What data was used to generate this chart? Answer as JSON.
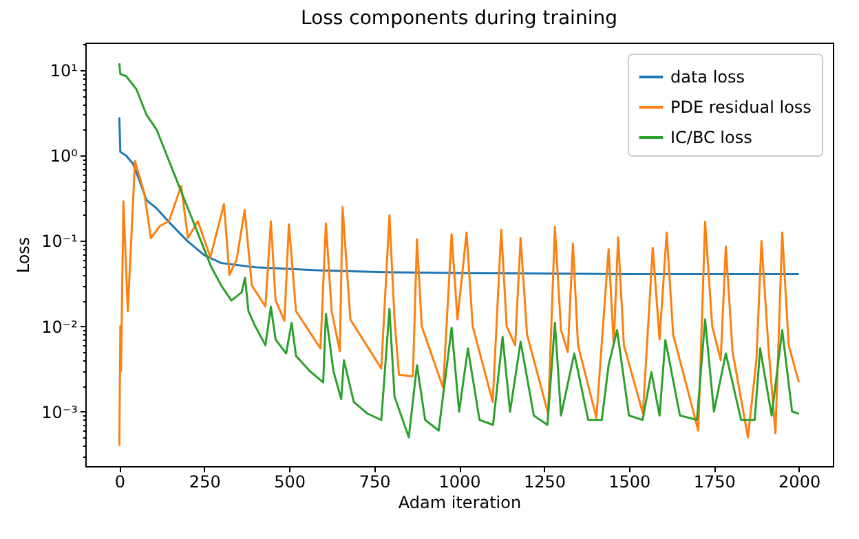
{
  "chart_data": {
    "type": "line",
    "title": "Loss components during training",
    "xlabel": "Adam iteration",
    "ylabel": "Loss",
    "log": "y",
    "grid": false,
    "legend": "top right",
    "marker": "none",
    "line_style": "solid",
    "xlim": [
      -100,
      2100
    ],
    "xticks": [
      0,
      250,
      500,
      750,
      1000,
      1250,
      1500,
      1750,
      2000
    ],
    "ylim": [
      0.00023,
      21
    ],
    "yticks": [
      {
        "value": 0.0003,
        "label": null
      },
      {
        "value": 0.0004,
        "label": null
      },
      {
        "value": 0.0005,
        "label": null
      },
      {
        "value": 0.0006,
        "label": null
      },
      {
        "value": 0.0007,
        "label": null
      },
      {
        "value": 0.0008,
        "label": null
      },
      {
        "value": 0.0009,
        "label": null
      },
      {
        "value": 0.001,
        "label": "10⁻³"
      },
      {
        "value": 0.002,
        "label": null
      },
      {
        "value": 0.003,
        "label": null
      },
      {
        "value": 0.004,
        "label": null
      },
      {
        "value": 0.005,
        "label": null
      },
      {
        "value": 0.006,
        "label": null
      },
      {
        "value": 0.007,
        "label": null
      },
      {
        "value": 0.008,
        "label": null
      },
      {
        "value": 0.009,
        "label": null
      },
      {
        "value": 0.01,
        "label": "10⁻²"
      },
      {
        "value": 0.02,
        "label": null
      },
      {
        "value": 0.03,
        "label": null
      },
      {
        "value": 0.04,
        "label": null
      },
      {
        "value": 0.05,
        "label": null
      },
      {
        "value": 0.06,
        "label": null
      },
      {
        "value": 0.07,
        "label": null
      },
      {
        "value": 0.08,
        "label": null
      },
      {
        "value": 0.09,
        "label": null
      },
      {
        "value": 0.1,
        "label": "10⁻¹"
      },
      {
        "value": 0.2,
        "label": null
      },
      {
        "value": 0.3,
        "label": null
      },
      {
        "value": 0.4,
        "label": null
      },
      {
        "value": 0.5,
        "label": null
      },
      {
        "value": 0.6,
        "label": null
      },
      {
        "value": 0.7,
        "label": null
      },
      {
        "value": 0.8,
        "label": null
      },
      {
        "value": 0.9,
        "label": null
      },
      {
        "value": 1,
        "label": "10⁰"
      },
      {
        "value": 2,
        "label": null
      },
      {
        "value": 3,
        "label": null
      },
      {
        "value": 4,
        "label": null
      },
      {
        "value": 5,
        "label": null
      },
      {
        "value": 6,
        "label": null
      },
      {
        "value": 7,
        "label": null
      },
      {
        "value": 8,
        "label": null
      },
      {
        "value": 9,
        "label": null
      },
      {
        "value": 10,
        "label": "10¹"
      },
      {
        "value": 20,
        "label": null
      }
    ],
    "series": [
      {
        "name": "data loss",
        "color": "#1f77b4",
        "x": [
          0,
          3,
          20,
          40,
          60,
          80,
          110,
          150,
          200,
          250,
          300,
          400,
          600,
          800,
          1000,
          1500,
          2000
        ],
        "values": [
          2.8,
          1.1,
          1.0,
          0.8,
          0.5,
          0.3,
          0.24,
          0.16,
          0.1,
          0.068,
          0.055,
          0.049,
          0.045,
          0.043,
          0.042,
          0.041,
          0.041
        ]
      },
      {
        "name": "PDE residual loss",
        "color": "#ff7f0e",
        "x": [
          0,
          3,
          5,
          12,
          25,
          46,
          73,
          93,
          120,
          146,
          182,
          202,
          231,
          268,
          308,
          324,
          345,
          369,
          390,
          430,
          446,
          460,
          486,
          499,
          520,
          592,
          608,
          625,
          649,
          657,
          680,
          771,
          795,
          810,
          823,
          864,
          876,
          890,
          953,
          978,
          995,
          1022,
          1040,
          1099,
          1124,
          1140,
          1165,
          1181,
          1200,
          1262,
          1282,
          1300,
          1320,
          1335,
          1350,
          1404,
          1440,
          1455,
          1468,
          1485,
          1541,
          1570,
          1590,
          1611,
          1630,
          1704,
          1724,
          1745,
          1770,
          1785,
          1805,
          1850,
          1875,
          1890,
          1910,
          1931,
          1951,
          1970,
          2000
        ],
        "values": [
          0.0004,
          0.01,
          0.003,
          0.29,
          0.015,
          0.86,
          0.37,
          0.108,
          0.15,
          0.17,
          0.44,
          0.108,
          0.17,
          0.064,
          0.27,
          0.04,
          0.06,
          0.23,
          0.03,
          0.017,
          0.17,
          0.02,
          0.0116,
          0.156,
          0.015,
          0.0055,
          0.16,
          0.015,
          0.0051,
          0.25,
          0.012,
          0.0032,
          0.2,
          0.012,
          0.0027,
          0.0026,
          0.104,
          0.01,
          0.0019,
          0.12,
          0.012,
          0.125,
          0.01,
          0.0013,
          0.135,
          0.01,
          0.006,
          0.108,
          0.008,
          0.00095,
          0.145,
          0.009,
          0.005,
          0.093,
          0.006,
          0.00085,
          0.08,
          0.006,
          0.11,
          0.006,
          0.00095,
          0.083,
          0.007,
          0.125,
          0.008,
          0.0006,
          0.168,
          0.01,
          0.004,
          0.086,
          0.005,
          0.0005,
          0.004,
          0.1,
          0.006,
          0.00056,
          0.125,
          0.006,
          0.0022
        ]
      },
      {
        "name": "IC/BC loss",
        "color": "#2ca02c",
        "x": [
          0,
          3,
          20,
          50,
          80,
          110,
          140,
          170,
          210,
          240,
          270,
          300,
          330,
          360,
          370,
          380,
          400,
          430,
          446,
          460,
          491,
          507,
          520,
          560,
          600,
          608,
          630,
          653,
          661,
          690,
          730,
          771,
          795,
          810,
          852,
          876,
          900,
          940,
          978,
          1000,
          1026,
          1060,
          1100,
          1128,
          1150,
          1181,
          1220,
          1260,
          1282,
          1300,
          1339,
          1380,
          1420,
          1440,
          1465,
          1500,
          1540,
          1566,
          1590,
          1607,
          1650,
          1700,
          1724,
          1750,
          1785,
          1830,
          1870,
          1886,
          1920,
          1951,
          1980,
          2000
        ],
        "values": [
          12,
          9,
          8.5,
          6,
          3,
          2,
          1,
          0.5,
          0.2,
          0.1,
          0.05,
          0.03,
          0.02,
          0.025,
          0.037,
          0.015,
          0.01,
          0.006,
          0.017,
          0.007,
          0.0048,
          0.011,
          0.0045,
          0.003,
          0.0022,
          0.014,
          0.003,
          0.0014,
          0.004,
          0.0013,
          0.00095,
          0.0008,
          0.016,
          0.0015,
          0.0005,
          0.0035,
          0.0008,
          0.0006,
          0.0096,
          0.001,
          0.0055,
          0.0008,
          0.0007,
          0.0075,
          0.001,
          0.0066,
          0.0009,
          0.0007,
          0.011,
          0.0009,
          0.0048,
          0.0008,
          0.0008,
          0.0035,
          0.009,
          0.0009,
          0.0008,
          0.0029,
          0.0009,
          0.0069,
          0.0009,
          0.0008,
          0.012,
          0.001,
          0.0048,
          0.0008,
          0.0008,
          0.0055,
          0.0009,
          0.009,
          0.001,
          0.00095
        ]
      }
    ]
  }
}
